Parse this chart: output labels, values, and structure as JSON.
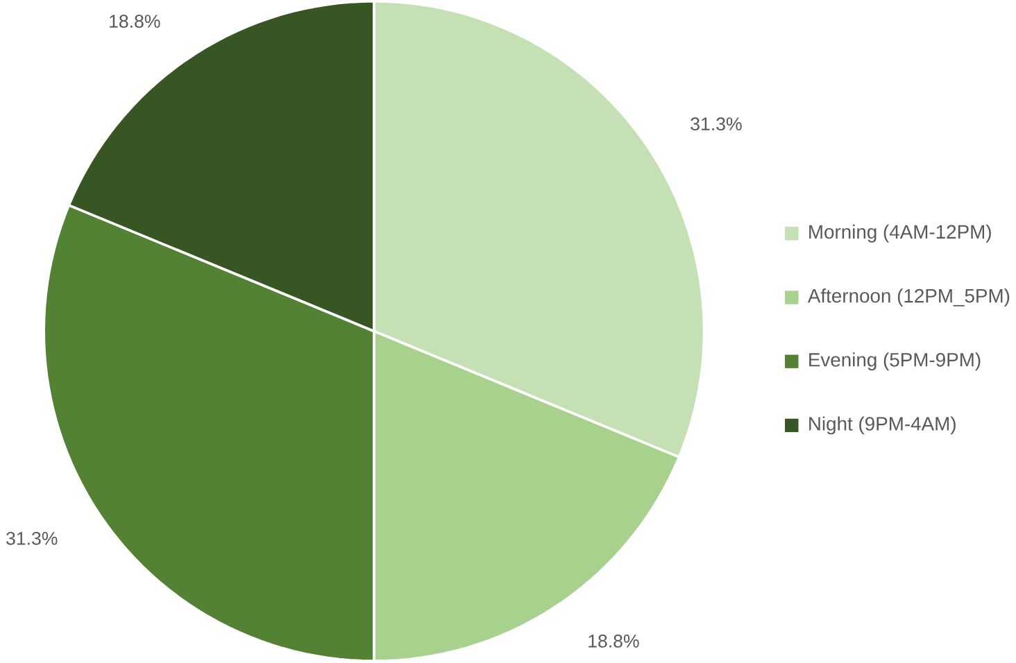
{
  "chart_data": {
    "type": "pie",
    "categories": [
      "Morning (4AM-12PM)",
      "Afternoon (12PM_5PM)",
      "Evening (5PM-9PM)",
      "Night (9PM-4AM)"
    ],
    "values": [
      31.3,
      18.8,
      31.3,
      18.8
    ],
    "value_labels": [
      "31.3%",
      "18.8%",
      "31.3%",
      "18.8%"
    ],
    "colors": [
      "#c5e0b4",
      "#a9d18e",
      "#548235",
      "#375623"
    ],
    "legend": "right"
  }
}
